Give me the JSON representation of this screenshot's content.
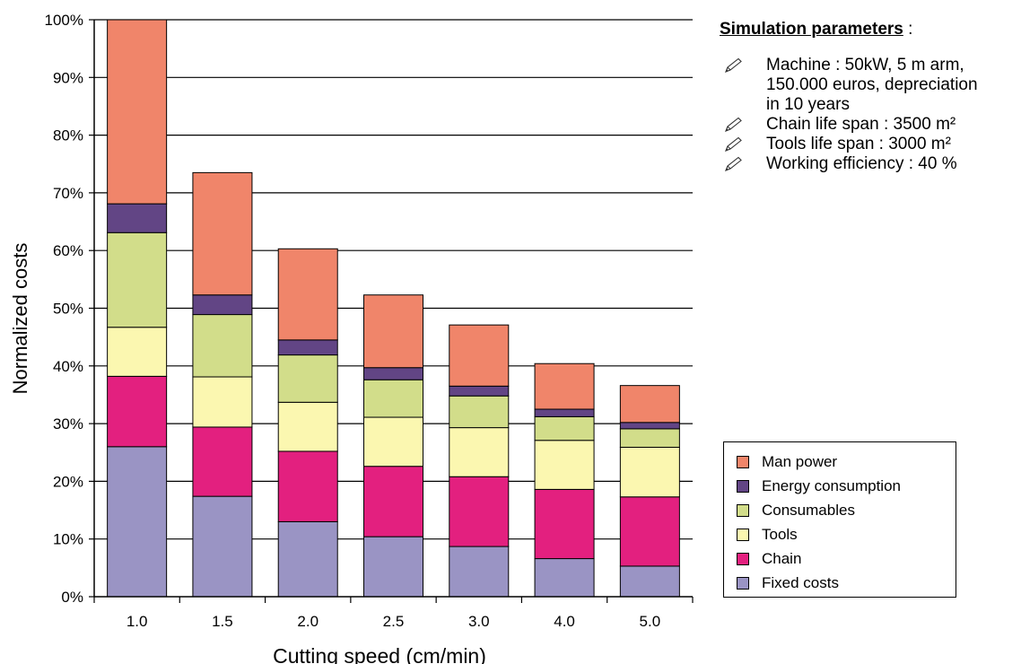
{
  "chart_data": {
    "type": "bar",
    "stacked": true,
    "xlabel": "Cutting speed (cm/min)",
    "ylabel": "Normalized costs",
    "ylim": [
      0,
      100
    ],
    "yticks": [
      "0%",
      "10%",
      "20%",
      "30%",
      "40%",
      "50%",
      "60%",
      "70%",
      "80%",
      "90%",
      "100%"
    ],
    "categories": [
      "1.0",
      "1.5",
      "2.0",
      "2.5",
      "3.0",
      "4.0",
      "5.0"
    ],
    "grid": "horizontal",
    "legend_position": "right",
    "series": [
      {
        "name": "Fixed costs",
        "color": "#9a94c4",
        "values": [
          26.0,
          17.4,
          13.0,
          10.4,
          8.7,
          6.6,
          5.3
        ]
      },
      {
        "name": "Chain",
        "color": "#e3207f",
        "values": [
          12.2,
          12.0,
          12.2,
          12.2,
          12.1,
          12.0,
          12.0
        ]
      },
      {
        "name": "Tools",
        "color": "#fbf7b0",
        "values": [
          8.5,
          8.7,
          8.5,
          8.5,
          8.5,
          8.5,
          8.6
        ]
      },
      {
        "name": "Consumables",
        "color": "#d2dd8a",
        "values": [
          16.4,
          10.8,
          8.2,
          6.5,
          5.5,
          4.1,
          3.2
        ]
      },
      {
        "name": "Energy consumption",
        "color": "#624585",
        "values": [
          5.0,
          3.4,
          2.6,
          2.1,
          1.7,
          1.3,
          1.1
        ]
      },
      {
        "name": "Man power",
        "color": "#f0856a",
        "values": [
          31.9,
          21.2,
          15.8,
          12.6,
          10.6,
          7.9,
          6.4
        ]
      }
    ]
  },
  "parameters": {
    "title": "Simulation parameters",
    "title_suffix": " :",
    "icon": "pencil-icon",
    "items": [
      {
        "lines": [
          "Machine : 50kW,  5 m arm,",
          "150.000 euros, depreciation",
          "in 10 years"
        ]
      },
      {
        "lines": [
          "Chain life span : 3500 m²"
        ]
      },
      {
        "lines": [
          "Tools life span : 3000 m²"
        ]
      },
      {
        "lines": [
          "Working efficiency : 40 %"
        ]
      }
    ]
  }
}
